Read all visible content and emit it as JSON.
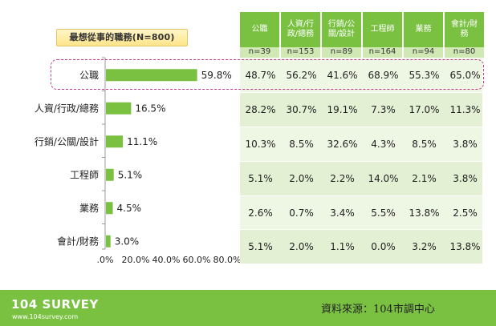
{
  "title_badge": "最想從事的職務(N=800)",
  "chart_data": {
    "type": "bar",
    "orientation": "horizontal",
    "categories": [
      "公職",
      "人資/行政/總務",
      "行銷/公關/設計",
      "工程師",
      "業務",
      "會計/財務"
    ],
    "values": [
      59.8,
      16.5,
      11.1,
      5.1,
      4.5,
      3.0
    ],
    "value_labels": [
      "59.8%",
      "16.5%",
      "11.1%",
      "5.1%",
      "4.5%",
      "3.0%"
    ],
    "xlim": [
      0,
      80
    ],
    "x_ticks": [
      ".0%",
      "20.0%",
      "40.0%",
      "60.0%",
      "80.0%"
    ],
    "bar_color": "#7ac142"
  },
  "table": {
    "columns": [
      {
        "label": "公職",
        "n": "n=39"
      },
      {
        "label": "人資/行\n政/總務",
        "n": "n=153"
      },
      {
        "label": "行銷/公\n關/設計",
        "n": "n=89"
      },
      {
        "label": "工程師",
        "n": "n=164"
      },
      {
        "label": "業務",
        "n": "n=94"
      },
      {
        "label": "會計/財\n務",
        "n": "n=80"
      }
    ],
    "rows": [
      [
        "48.7%",
        "56.2%",
        "41.6%",
        "68.9%",
        "55.3%",
        "65.0%"
      ],
      [
        "28.2%",
        "30.7%",
        "19.1%",
        "7.3%",
        "17.0%",
        "11.3%"
      ],
      [
        "10.3%",
        "8.5%",
        "32.6%",
        "4.3%",
        "8.5%",
        "3.8%"
      ],
      [
        "5.1%",
        "2.0%",
        "2.2%",
        "14.0%",
        "2.1%",
        "3.8%"
      ],
      [
        "2.6%",
        "0.7%",
        "3.4%",
        "5.5%",
        "13.8%",
        "2.5%"
      ],
      [
        "5.1%",
        "2.0%",
        "1.1%",
        "0.0%",
        "3.2%",
        "13.8%"
      ]
    ],
    "header_color": "#7ac142",
    "n_row_color": "#cfe8b4",
    "row_colors": [
      "#eef6e4",
      "#e3f0d4"
    ]
  },
  "footer": {
    "logo": "104 SURVEY",
    "url": "www.104survey.com",
    "source": "資料來源：104市調中心"
  }
}
